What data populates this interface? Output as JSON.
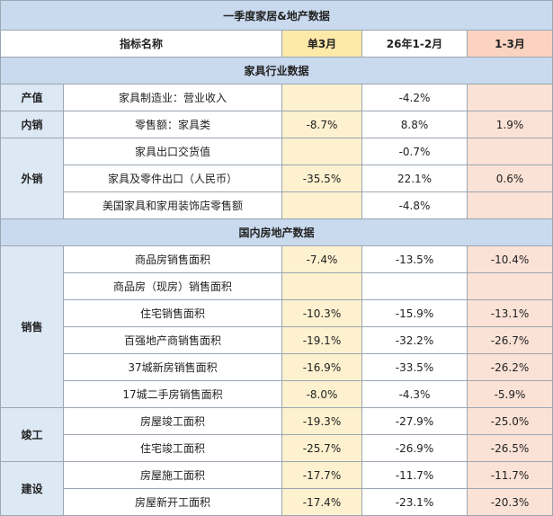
{
  "title": "一季度家居&地产数据",
  "headers": {
    "indicator": "指标名称",
    "m3": "单3月",
    "jan_feb": "26年1-2月",
    "q1": "1-3月"
  },
  "section1": {
    "title": "家具行业数据",
    "cat_output": "产值",
    "cat_domestic": "内销",
    "cat_export": "外销",
    "rows": [
      {
        "name": "家具制造业：营业收入",
        "m3": "",
        "jan_feb": "-4.2%",
        "q1": ""
      },
      {
        "name": "零售额：家具类",
        "m3": "-8.7%",
        "jan_feb": "8.8%",
        "q1": "1.9%"
      },
      {
        "name": "家具出口交货值",
        "m3": "",
        "jan_feb": "-0.7%",
        "q1": ""
      },
      {
        "name": "家具及零件出口（人民币）",
        "m3": "-35.5%",
        "jan_feb": "22.1%",
        "q1": "0.6%"
      },
      {
        "name": "美国家具和家用装饰店零售额",
        "m3": "",
        "jan_feb": "-4.8%",
        "q1": ""
      }
    ]
  },
  "section2": {
    "title": "国内房地产数据",
    "cat_sales": "销售",
    "cat_completion": "竣工",
    "cat_construction": "建设",
    "rows": [
      {
        "name": "商品房销售面积",
        "m3": "-7.4%",
        "jan_feb": "-13.5%",
        "q1": "-10.4%"
      },
      {
        "name": "商品房（现房）销售面积",
        "m3": "",
        "jan_feb": "",
        "q1": ""
      },
      {
        "name": "住宅销售面积",
        "m3": "-10.3%",
        "jan_feb": "-15.9%",
        "q1": "-13.1%"
      },
      {
        "name": "百强地产商销售面积",
        "m3": "-19.1%",
        "jan_feb": "-32.2%",
        "q1": "-26.7%"
      },
      {
        "name": "37城新房销售面积",
        "m3": "-16.9%",
        "jan_feb": "-33.5%",
        "q1": "-26.2%"
      },
      {
        "name": "17城二手房销售面积",
        "m3": "-8.0%",
        "jan_feb": "-4.3%",
        "q1": "-5.9%"
      },
      {
        "name": "房屋竣工面积",
        "m3": "-19.3%",
        "jan_feb": "-27.9%",
        "q1": "-25.0%"
      },
      {
        "name": "住宅竣工面积",
        "m3": "-25.7%",
        "jan_feb": "-26.9%",
        "q1": "-26.5%"
      },
      {
        "name": "房屋施工面积",
        "m3": "-17.7%",
        "jan_feb": "-11.7%",
        "q1": "-11.7%"
      },
      {
        "name": "房屋新开工面积",
        "m3": "-17.4%",
        "jan_feb": "-23.1%",
        "q1": "-20.3%"
      }
    ]
  }
}
